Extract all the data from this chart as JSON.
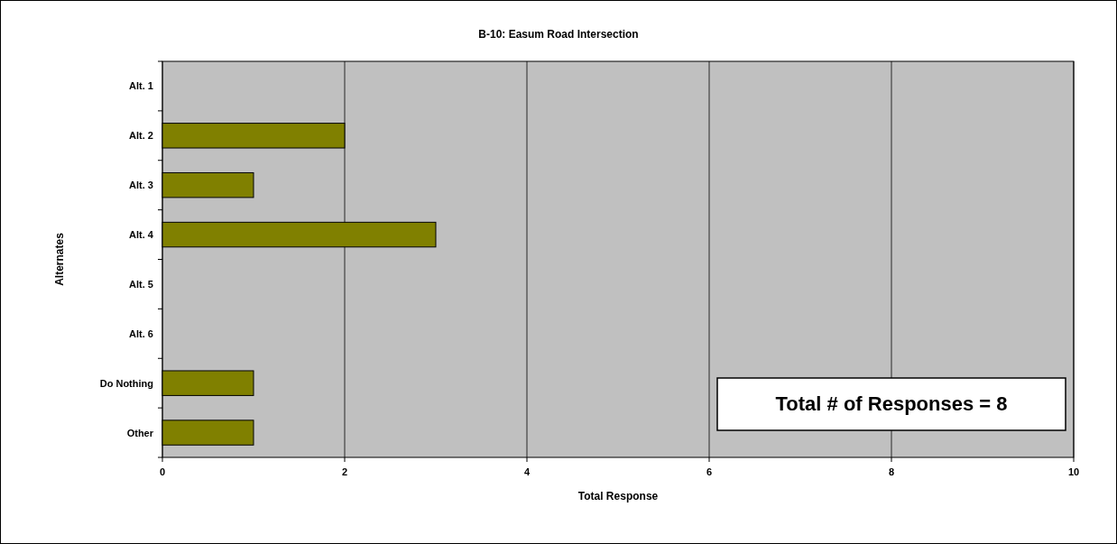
{
  "chart_data": {
    "type": "bar",
    "orientation": "horizontal",
    "title": "B-10: Easum Road Intersection",
    "xlabel": "Total Response",
    "ylabel": "Alternates",
    "categories": [
      "Alt. 1",
      "Alt. 2",
      "Alt. 3",
      "Alt. 4",
      "Alt. 5",
      "Alt. 6",
      "Do Nothing",
      "Other"
    ],
    "values": [
      0,
      2,
      1,
      3,
      0,
      0,
      1,
      1
    ],
    "color": "#808000",
    "xlim": [
      0,
      10
    ],
    "xticks": [
      0,
      2,
      4,
      6,
      8,
      10
    ],
    "grid": "x",
    "annotations": [
      "Total # of Responses = 8"
    ]
  }
}
